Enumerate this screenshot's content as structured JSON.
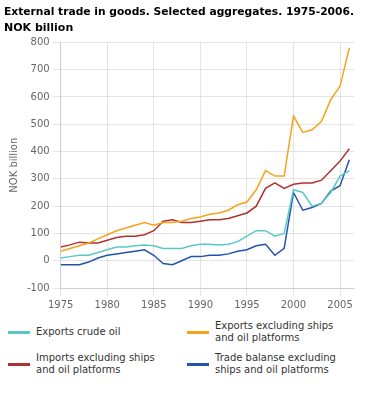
{
  "chart_data": {
    "type": "line",
    "title": "External trade in goods. Selected aggregates. 1975-2006.",
    "subtitle": "NOK billion",
    "ylabel": "NOK billion",
    "x": [
      1975,
      1976,
      1977,
      1978,
      1979,
      1980,
      1981,
      1982,
      1983,
      1984,
      1985,
      1986,
      1987,
      1988,
      1989,
      1990,
      1991,
      1992,
      1993,
      1994,
      1995,
      1996,
      1997,
      1998,
      1999,
      2000,
      2001,
      2002,
      2003,
      2004,
      2005,
      2006
    ],
    "series": [
      {
        "name": "Exports crude oil",
        "color": "#5bc8c8",
        "values": [
          10,
          15,
          20,
          20,
          30,
          40,
          50,
          50,
          55,
          58,
          55,
          45,
          45,
          45,
          55,
          60,
          60,
          58,
          60,
          70,
          90,
          110,
          110,
          90,
          100,
          260,
          250,
          200,
          210,
          250,
          310,
          330
        ]
      },
      {
        "name": "Exports excluding ships\nand oil platforms",
        "color": "#f5a31a",
        "values": [
          35,
          45,
          55,
          65,
          80,
          95,
          110,
          120,
          130,
          140,
          130,
          140,
          140,
          145,
          155,
          160,
          170,
          175,
          185,
          205,
          215,
          260,
          330,
          310,
          310,
          530,
          470,
          480,
          510,
          590,
          640,
          780
        ]
      },
      {
        "name": "Imports excluding ships\nand oil platforms",
        "color": "#b03030",
        "values": [
          50,
          58,
          68,
          65,
          65,
          75,
          85,
          90,
          90,
          95,
          110,
          145,
          150,
          140,
          140,
          145,
          150,
          150,
          155,
          165,
          175,
          200,
          265,
          285,
          265,
          280,
          285,
          285,
          295,
          330,
          365,
          410
        ]
      },
      {
        "name": "Trade balanse excluding\nships and oil platforms",
        "color": "#2255aa",
        "values": [
          -15,
          -15,
          -15,
          -5,
          10,
          20,
          25,
          30,
          35,
          40,
          20,
          -10,
          -15,
          0,
          15,
          15,
          20,
          20,
          25,
          35,
          40,
          55,
          60,
          20,
          45,
          250,
          185,
          195,
          210,
          255,
          275,
          370
        ]
      }
    ],
    "xlim": [
      1975,
      2006.5
    ],
    "xticks": [
      1975,
      1980,
      1985,
      1990,
      1995,
      2000,
      2005
    ],
    "ylim": [
      -100,
      800
    ],
    "yticks": [
      -100,
      0,
      100,
      200,
      300,
      400,
      500,
      600,
      700,
      800
    ],
    "grid": true,
    "legend": "bottom"
  }
}
